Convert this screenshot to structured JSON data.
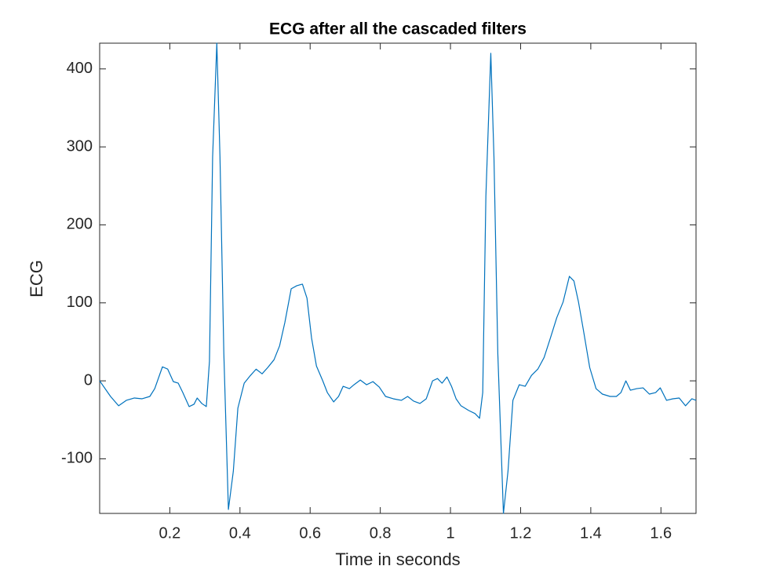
{
  "chart_data": {
    "type": "line",
    "title": "ECG after all the cascaded filters",
    "x_label": "Time in seconds",
    "y_label": "ECG",
    "color": "#0072bd",
    "x": [
      0,
      0.031,
      0.054,
      0.076,
      0.099,
      0.121,
      0.143,
      0.157,
      0.179,
      0.194,
      0.21,
      0.224,
      0.237,
      0.255,
      0.269,
      0.278,
      0.291,
      0.304,
      0.313,
      0.322,
      0.334,
      0.343,
      0.354,
      0.367,
      0.381,
      0.394,
      0.412,
      0.43,
      0.446,
      0.463,
      0.479,
      0.497,
      0.513,
      0.528,
      0.546,
      0.562,
      0.578,
      0.591,
      0.604,
      0.618,
      0.636,
      0.649,
      0.667,
      0.681,
      0.694,
      0.712,
      0.725,
      0.743,
      0.761,
      0.779,
      0.797,
      0.815,
      0.837,
      0.86,
      0.878,
      0.895,
      0.913,
      0.931,
      0.949,
      0.963,
      0.976,
      0.99,
      1.003,
      1.016,
      1.03,
      1.052,
      1.07,
      1.083,
      1.092,
      1.101,
      1.115,
      1.124,
      1.135,
      1.151,
      1.164,
      1.178,
      1.196,
      1.213,
      1.231,
      1.249,
      1.267,
      1.285,
      1.303,
      1.321,
      1.339,
      1.352,
      1.365,
      1.379,
      1.397,
      1.415,
      1.433,
      1.455,
      1.473,
      1.486,
      1.5,
      1.513,
      1.531,
      1.549,
      1.567,
      1.585,
      1.598,
      1.616,
      1.634,
      1.652,
      1.67,
      1.688,
      1.7
    ],
    "values": [
      0,
      -20,
      -32,
      -25,
      -22,
      -23,
      -20,
      -10,
      18,
      15,
      -1,
      -3,
      -15,
      -33,
      -30,
      -22,
      -29,
      -33,
      25,
      287,
      433,
      287,
      35,
      -165,
      -116,
      -35,
      -3,
      7,
      15,
      9,
      17,
      27,
      45,
      75,
      118,
      122,
      124,
      106,
      55,
      19,
      0,
      -15,
      -27,
      -20,
      -7,
      -10,
      -5,
      1,
      -5,
      -1,
      -8,
      -20,
      -23,
      -25,
      -20,
      -26,
      -29,
      -23,
      0,
      3,
      -3,
      5,
      -7,
      -23,
      -32,
      -38,
      -42,
      -48,
      -15,
      237,
      420,
      287,
      35,
      -170,
      -116,
      -25,
      -5,
      -7,
      7,
      15,
      30,
      55,
      81,
      101,
      134,
      128,
      101,
      65,
      17,
      -10,
      -17,
      -20,
      -20,
      -15,
      0,
      -12,
      -10,
      -9,
      -17,
      -15,
      -9,
      -25,
      -23,
      -22,
      -32,
      -23,
      -25
    ],
    "xlim": [
      0,
      1.7
    ],
    "ylim": [
      -170,
      433
    ],
    "xticks": [
      0.2,
      0.4,
      0.6,
      0.8,
      1,
      1.2,
      1.4,
      1.6
    ],
    "yticks": [
      -100,
      0,
      100,
      200,
      300,
      400
    ]
  }
}
